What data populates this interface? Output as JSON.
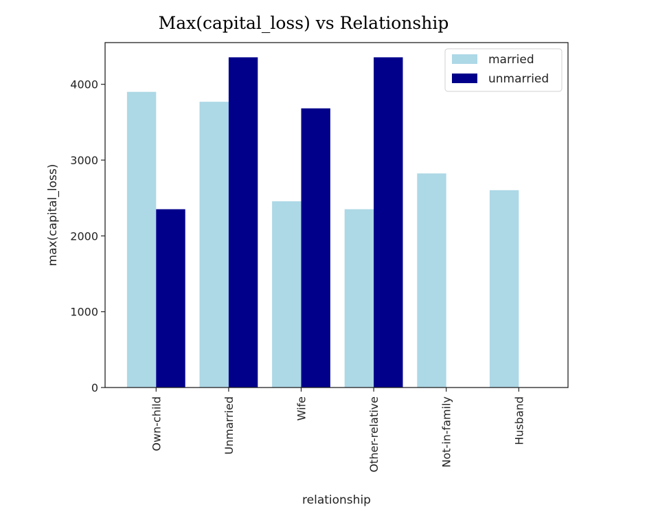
{
  "chart_data": {
    "type": "bar",
    "title": "Max(capital_loss) vs Relationship",
    "xlabel": "relationship",
    "ylabel": "max(capital_loss)",
    "categories": [
      "Own-child",
      "Unmarried",
      "Wife",
      "Other-relative",
      "Not-in-family",
      "Husband"
    ],
    "series": [
      {
        "name": "married",
        "color": "#add8e6",
        "values": [
          3900,
          3770,
          2457,
          2352,
          2824,
          2603
        ]
      },
      {
        "name": "unmarried",
        "color": "#00008b",
        "values": [
          2352,
          4356,
          3683,
          4356,
          0,
          0
        ]
      }
    ],
    "ylim": [
      0,
      4550
    ],
    "yticks": [
      0,
      1000,
      2000,
      3000,
      4000
    ],
    "grid": false,
    "legend": "top-right"
  }
}
